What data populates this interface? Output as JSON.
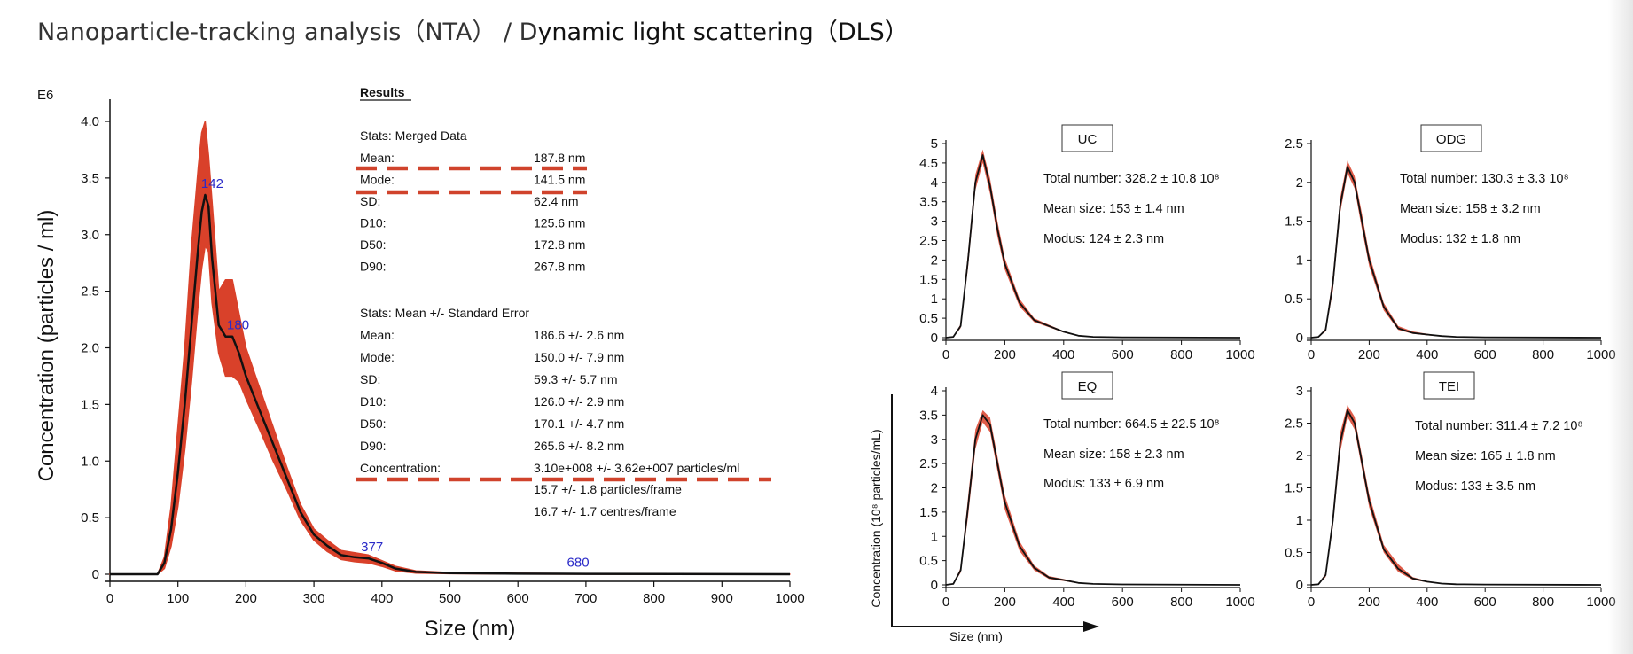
{
  "slide": {
    "title_part1": "Nanoparticle-tracking analysis（NTA） / D",
    "title_part2": "ynamic light scattering（DLS）"
  },
  "colors": {
    "band": "#d9412a",
    "line": "#111111",
    "dash": "#d0432c",
    "peak_label": "#2a2ac8"
  },
  "nta": {
    "y_multiplier": "E6",
    "ylabel": "Concentration (particles / ml)",
    "xlabel": "Size (nm)",
    "peak_labels": [
      "142",
      "180",
      "377",
      "680"
    ],
    "results_heading": "Results",
    "merged_heading": "Stats: Merged Data",
    "merged_rows": [
      {
        "label": "Mean:",
        "value": "187.8 nm"
      },
      {
        "label": "Mode:",
        "value": "141.5 nm"
      },
      {
        "label": "SD:",
        "value": "62.4 nm"
      },
      {
        "label": "D10:",
        "value": "125.6 nm"
      },
      {
        "label": "D50:",
        "value": "172.8 nm"
      },
      {
        "label": "D90:",
        "value": "267.8 nm"
      }
    ],
    "se_heading": "Stats: Mean +/- Standard Error",
    "se_rows": [
      {
        "label": "Mean:",
        "value": "186.6 +/- 2.6 nm"
      },
      {
        "label": "Mode:",
        "value": "150.0 +/- 7.9 nm"
      },
      {
        "label": "SD:",
        "value": "59.3 +/- 5.7 nm"
      },
      {
        "label": "D10:",
        "value": "126.0 +/- 2.9 nm"
      },
      {
        "label": "D50:",
        "value": "170.1 +/- 4.7 nm"
      },
      {
        "label": "D90:",
        "value": "265.6 +/- 8.2 nm"
      },
      {
        "label": "Concentration:",
        "value": "3.10e+008 +/- 3.62e+007 particles/ml"
      }
    ],
    "extra_rows": [
      "15.7 +/- 1.8 particles/frame",
      "16.7 +/- 1.7 centres/frame"
    ]
  },
  "dls": {
    "ylabel": "Concentration (10⁸ particles/mL)",
    "xlabel": "Size (nm)",
    "panels": [
      {
        "name": "UC",
        "total": "Total number: 328.2 ± 10.8 10⁸",
        "mean": "Mean size: 153 ± 1.4 nm",
        "modus": "Modus: 124 ± 2.3 nm"
      },
      {
        "name": "ODG",
        "total": "Total number: 130.3 ± 3.3 10⁸",
        "mean": "Mean size: 158 ± 3.2 nm",
        "modus": "Modus: 132 ± 1.8 nm"
      },
      {
        "name": "EQ",
        "total": "Total number: 664.5 ± 22.5 10⁸",
        "mean": "Mean size: 158 ± 2.3 nm",
        "modus": "Modus: 133 ± 6.9 nm"
      },
      {
        "name": "TEI",
        "total": "Total number: 311.4 ± 7.2 10⁸",
        "mean": "Mean size: 165 ± 1.8 nm",
        "modus": "Modus: 133 ± 3.5 nm"
      }
    ]
  },
  "chart_data": [
    {
      "type": "line",
      "xlabel": "Size (nm)",
      "ylabel": "Concentration (particles / ml)",
      "xlim": [
        0,
        1000
      ],
      "ylim": [
        0,
        4.0
      ],
      "xticks": [
        0,
        100,
        200,
        300,
        400,
        500,
        600,
        700,
        800,
        900,
        1000
      ],
      "yticks": [
        0,
        0.5,
        1.0,
        1.5,
        2.0,
        2.5,
        3.0,
        3.5,
        4.0
      ],
      "ytick_labels": [
        "0",
        "0.5",
        "1.0",
        "1.5",
        "2.0",
        "2.5",
        "3.0",
        "3.5",
        "4.0"
      ],
      "x": [
        0,
        70,
        80,
        90,
        100,
        110,
        120,
        130,
        135,
        140,
        145,
        150,
        160,
        170,
        180,
        190,
        200,
        220,
        240,
        260,
        280,
        300,
        320,
        340,
        360,
        380,
        400,
        420,
        450,
        500,
        600,
        700,
        1000
      ],
      "series": [
        {
          "name": "Mean",
          "values": [
            0,
            0,
            0.1,
            0.4,
            0.9,
            1.5,
            2.2,
            2.9,
            3.2,
            3.35,
            3.25,
            2.8,
            2.2,
            2.1,
            2.1,
            1.95,
            1.75,
            1.45,
            1.15,
            0.85,
            0.55,
            0.35,
            0.25,
            0.17,
            0.15,
            0.14,
            0.1,
            0.05,
            0.02,
            0.01,
            0.005,
            0.003,
            0
          ]
        },
        {
          "name": "Upper",
          "values": [
            0,
            0,
            0.15,
            0.6,
            1.3,
            2.0,
            2.9,
            3.6,
            3.9,
            4.0,
            3.7,
            3.3,
            2.5,
            2.6,
            2.6,
            2.3,
            2.0,
            1.65,
            1.3,
            0.95,
            0.62,
            0.4,
            0.3,
            0.21,
            0.19,
            0.17,
            0.12,
            0.07,
            0.03,
            0.015,
            0.008,
            0.005,
            0
          ]
        },
        {
          "name": "Lower",
          "values": [
            0,
            0,
            0.05,
            0.25,
            0.6,
            1.1,
            1.7,
            2.4,
            2.7,
            2.9,
            2.85,
            2.4,
            1.95,
            1.75,
            1.75,
            1.7,
            1.55,
            1.28,
            1.0,
            0.75,
            0.48,
            0.3,
            0.2,
            0.13,
            0.11,
            0.1,
            0.07,
            0.03,
            0.01,
            0.005,
            0.002,
            0.001,
            0
          ]
        }
      ],
      "annotations": [
        {
          "text": "142",
          "x": 142,
          "y": 3.35
        },
        {
          "text": "180",
          "x": 180,
          "y": 2.1
        },
        {
          "text": "377",
          "x": 377,
          "y": 0.14
        },
        {
          "text": "680",
          "x": 680,
          "y": 0.005
        }
      ]
    },
    {
      "type": "line",
      "title": "UC",
      "xlim": [
        0,
        1000
      ],
      "ylim": [
        0,
        5
      ],
      "xticks": [
        0,
        200,
        400,
        600,
        800,
        1000
      ],
      "yticks": [
        0,
        0.5,
        1,
        1.5,
        2,
        2.5,
        3,
        3.5,
        4,
        4.5,
        5
      ],
      "x": [
        0,
        25,
        50,
        75,
        100,
        125,
        150,
        175,
        200,
        250,
        300,
        350,
        400,
        450,
        500,
        600,
        1000
      ],
      "series": [
        {
          "name": "Mean",
          "values": [
            0,
            0.02,
            0.3,
            2.0,
            4.0,
            4.7,
            3.9,
            2.8,
            1.9,
            0.9,
            0.45,
            0.3,
            0.15,
            0.05,
            0.02,
            0.01,
            0
          ]
        },
        {
          "name": "Upper",
          "values": [
            0,
            0.03,
            0.35,
            2.2,
            4.2,
            4.85,
            4.1,
            3.0,
            2.05,
            1.0,
            0.5,
            0.33,
            0.17,
            0.06,
            0.02,
            0.01,
            0
          ]
        },
        {
          "name": "Lower",
          "values": [
            0,
            0.01,
            0.25,
            1.8,
            3.8,
            4.5,
            3.7,
            2.6,
            1.75,
            0.8,
            0.4,
            0.27,
            0.13,
            0.04,
            0.02,
            0.01,
            0
          ]
        }
      ]
    },
    {
      "type": "line",
      "title": "ODG",
      "xlim": [
        0,
        1000
      ],
      "ylim": [
        0,
        2.5
      ],
      "xticks": [
        0,
        200,
        400,
        600,
        800,
        1000
      ],
      "yticks": [
        0,
        0.5,
        1,
        1.5,
        2,
        2.5
      ],
      "x": [
        0,
        25,
        50,
        75,
        100,
        125,
        150,
        175,
        200,
        250,
        300,
        350,
        400,
        450,
        500,
        600,
        1000
      ],
      "series": [
        {
          "name": "Mean",
          "values": [
            0,
            0.01,
            0.1,
            0.7,
            1.7,
            2.2,
            2.0,
            1.5,
            1.0,
            0.4,
            0.12,
            0.06,
            0.04,
            0.02,
            0.01,
            0.005,
            0
          ]
        },
        {
          "name": "Upper",
          "values": [
            0,
            0.015,
            0.12,
            0.8,
            1.8,
            2.28,
            2.08,
            1.6,
            1.08,
            0.45,
            0.15,
            0.08,
            0.05,
            0.02,
            0.01,
            0.005,
            0
          ]
        },
        {
          "name": "Lower",
          "values": [
            0,
            0.005,
            0.08,
            0.6,
            1.6,
            2.12,
            1.92,
            1.4,
            0.92,
            0.35,
            0.1,
            0.05,
            0.03,
            0.015,
            0.01,
            0.005,
            0
          ]
        }
      ]
    },
    {
      "type": "line",
      "title": "EQ",
      "xlim": [
        0,
        1000
      ],
      "ylim": [
        0,
        4
      ],
      "xticks": [
        0,
        200,
        400,
        600,
        800,
        1000
      ],
      "yticks": [
        0,
        0.5,
        1,
        1.5,
        2,
        2.5,
        3,
        3.5,
        4
      ],
      "x": [
        0,
        25,
        50,
        75,
        100,
        125,
        150,
        175,
        200,
        250,
        300,
        350,
        400,
        450,
        500,
        600,
        1000
      ],
      "series": [
        {
          "name": "Mean",
          "values": [
            0,
            0.02,
            0.3,
            1.6,
            3.0,
            3.5,
            3.3,
            2.5,
            1.7,
            0.8,
            0.35,
            0.15,
            0.1,
            0.04,
            0.02,
            0.01,
            0
          ]
        },
        {
          "name": "Upper",
          "values": [
            0,
            0.03,
            0.35,
            1.8,
            3.2,
            3.6,
            3.45,
            2.65,
            1.85,
            0.9,
            0.4,
            0.18,
            0.12,
            0.05,
            0.02,
            0.01,
            0
          ]
        },
        {
          "name": "Lower",
          "values": [
            0,
            0.01,
            0.25,
            1.4,
            2.8,
            3.35,
            3.15,
            2.35,
            1.55,
            0.7,
            0.3,
            0.12,
            0.08,
            0.03,
            0.02,
            0.01,
            0
          ]
        }
      ]
    },
    {
      "type": "line",
      "title": "TEI",
      "xlim": [
        0,
        1000
      ],
      "ylim": [
        0,
        3
      ],
      "xticks": [
        0,
        200,
        400,
        600,
        800,
        1000
      ],
      "yticks": [
        0,
        0.5,
        1,
        1.5,
        2,
        2.5,
        3
      ],
      "x": [
        0,
        25,
        50,
        75,
        100,
        125,
        150,
        175,
        200,
        250,
        300,
        350,
        400,
        450,
        500,
        600,
        1000
      ],
      "series": [
        {
          "name": "Mean",
          "values": [
            0,
            0.01,
            0.15,
            1.0,
            2.2,
            2.7,
            2.5,
            1.9,
            1.3,
            0.55,
            0.25,
            0.1,
            0.05,
            0.02,
            0.01,
            0.005,
            0
          ]
        },
        {
          "name": "Upper",
          "values": [
            0,
            0.015,
            0.18,
            1.1,
            2.35,
            2.78,
            2.6,
            2.0,
            1.4,
            0.62,
            0.32,
            0.12,
            0.06,
            0.02,
            0.01,
            0.005,
            0
          ]
        },
        {
          "name": "Lower",
          "values": [
            0,
            0.005,
            0.12,
            0.9,
            2.05,
            2.6,
            2.4,
            1.8,
            1.2,
            0.5,
            0.2,
            0.08,
            0.04,
            0.015,
            0.01,
            0.005,
            0
          ]
        }
      ]
    }
  ]
}
